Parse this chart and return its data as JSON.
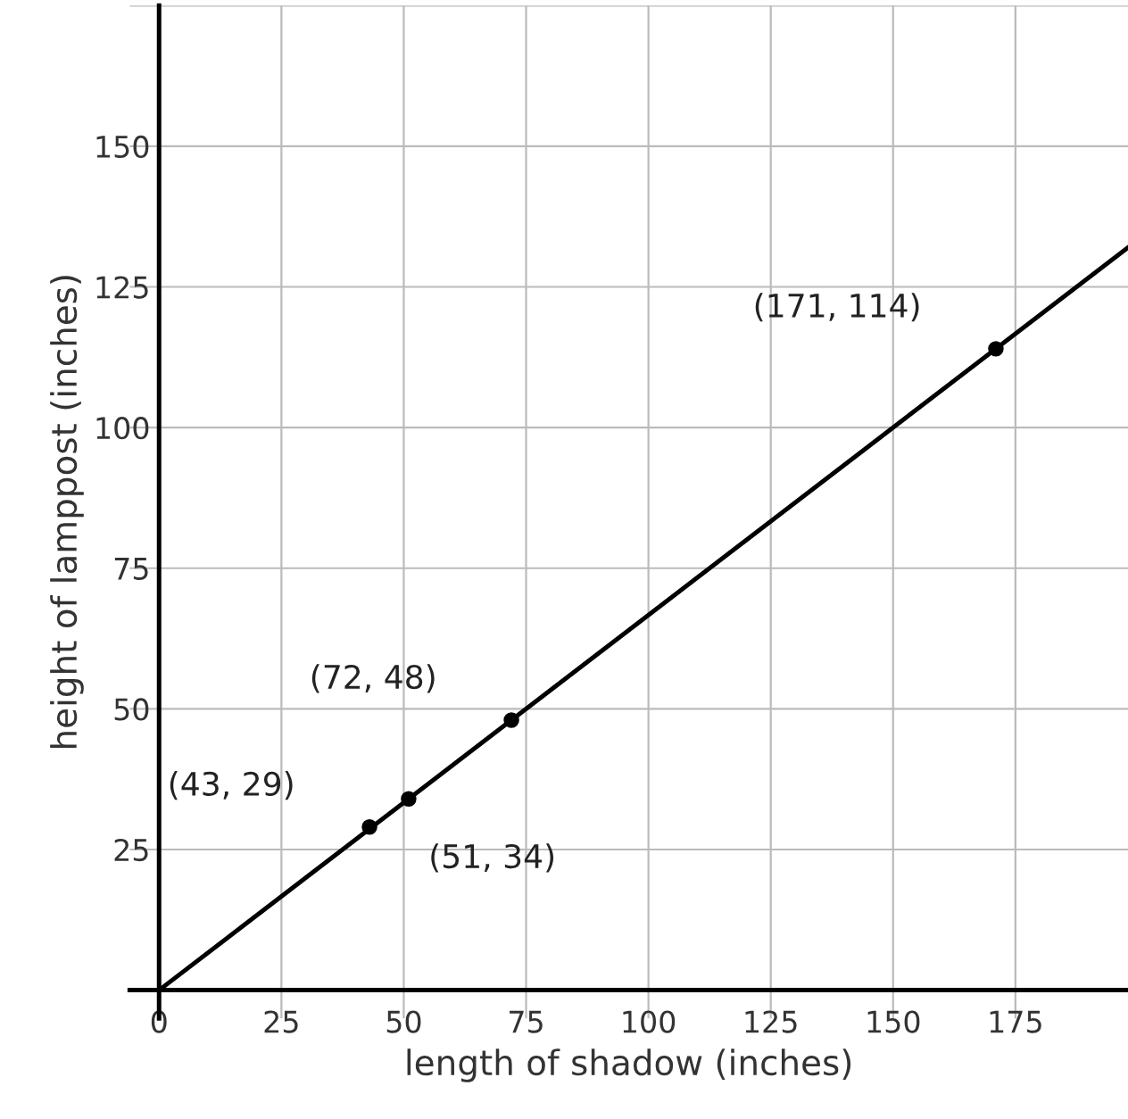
{
  "chart_data": {
    "type": "line",
    "xlabel": "length of shadow (inches)",
    "ylabel": "height of lamppost (inches)",
    "xlim": [
      -6,
      198
    ],
    "ylim": [
      -5,
      175
    ],
    "xticks": [
      {
        "value": 0,
        "label": "0"
      },
      25,
      50,
      75,
      100,
      125,
      150,
      175
    ],
    "yticks": [
      25,
      50,
      75,
      100,
      125,
      150,
      {
        "value": 175,
        "label": null
      }
    ],
    "grid": true,
    "series": [
      {
        "color": "#000000",
        "x": [
          0,
          198
        ],
        "values": [
          0,
          132
        ]
      },
      {
        "type": "scatter",
        "marker": "circle",
        "color": "#000000",
        "x": [
          43,
          51,
          72,
          171
        ],
        "values": [
          29,
          34,
          48,
          114
        ]
      }
    ],
    "annotations": [
      {
        "text": "(43, 29)",
        "x": 43,
        "y": 29
      },
      {
        "text": "(51, 34)",
        "x": 51,
        "y": 34
      },
      {
        "text": "(72, 48)",
        "x": 72,
        "y": 48
      },
      {
        "text": "(171, 114)",
        "x": 171,
        "y": 114
      }
    ]
  }
}
